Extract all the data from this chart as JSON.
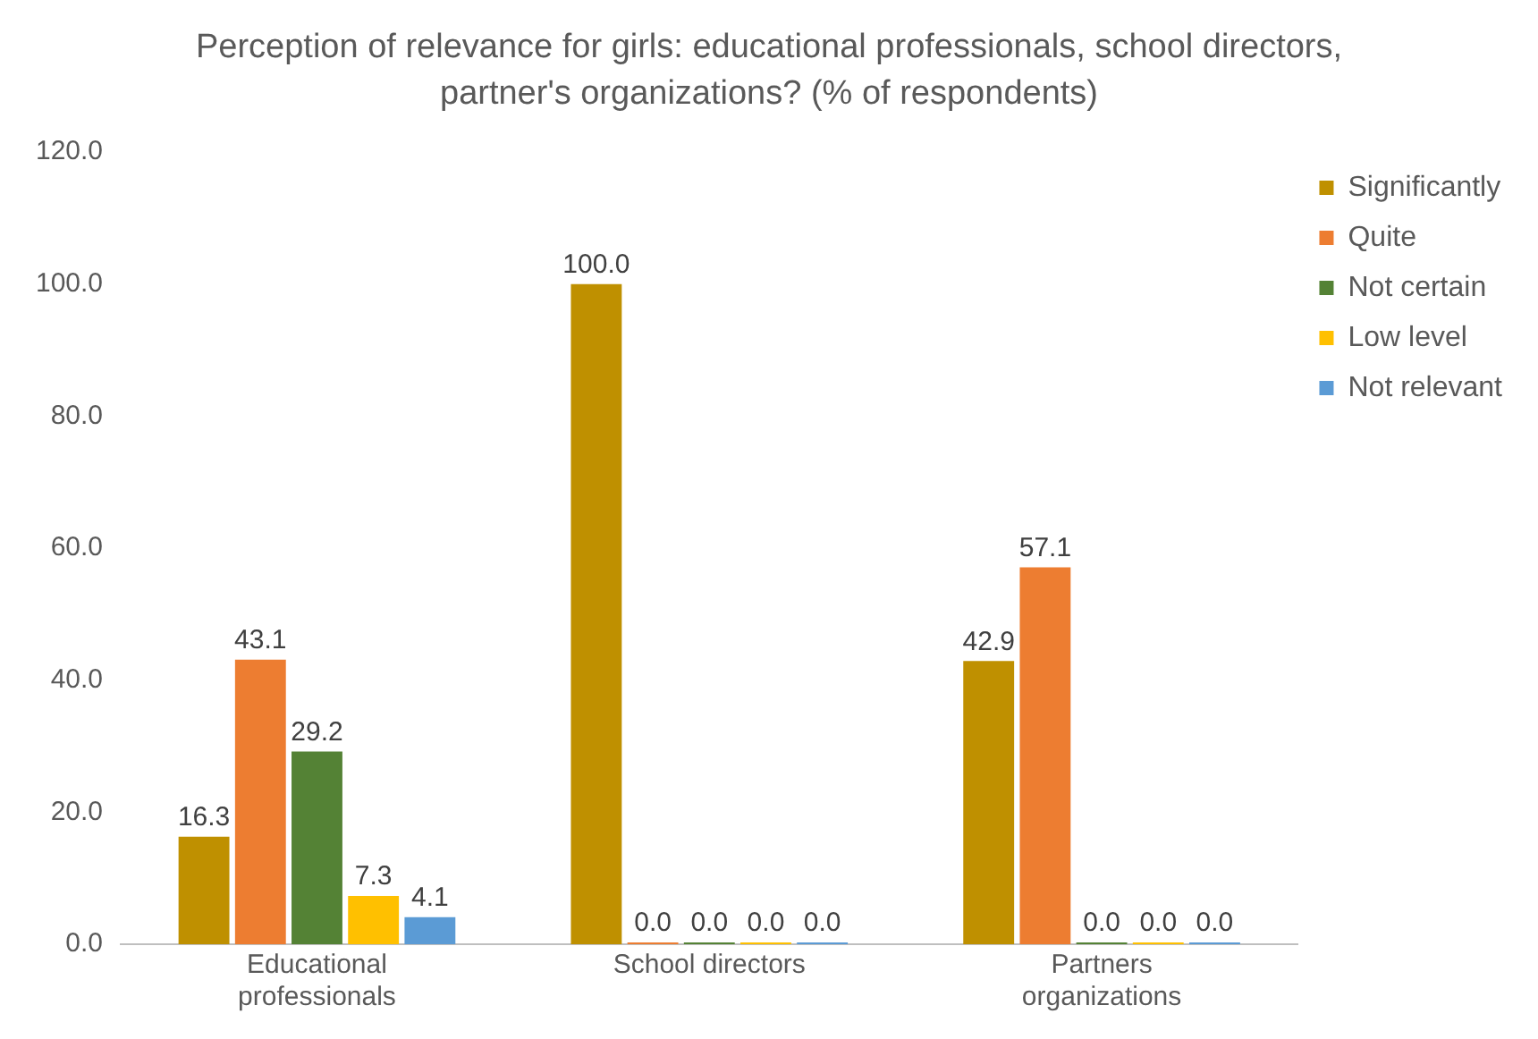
{
  "chart_data": {
    "type": "bar",
    "title": "Perception of relevance for girls: educational professionals, school directors, partner's organizations? (% of respondents)",
    "categories": [
      "Educational professionals",
      "School directors",
      "Partners organizations"
    ],
    "series": [
      {
        "name": "Significantly",
        "color": "#bf9000",
        "values": [
          16.3,
          100.0,
          42.9
        ],
        "value_labels": [
          "16.3",
          "100.0",
          "42.9"
        ]
      },
      {
        "name": "Quite",
        "color": "#ed7d31",
        "values": [
          43.1,
          0.0,
          57.1
        ],
        "value_labels": [
          "43.1",
          "0.0",
          "57.1"
        ]
      },
      {
        "name": "Not certain",
        "color": "#548235",
        "values": [
          29.2,
          0.0,
          0.0
        ],
        "value_labels": [
          "29.2",
          "0.0",
          "0.0"
        ]
      },
      {
        "name": "Low level",
        "color": "#ffc000",
        "values": [
          7.3,
          0.0,
          0.0
        ],
        "value_labels": [
          "7.3",
          "0.0",
          "0.0"
        ]
      },
      {
        "name": "Not relevant",
        "color": "#5b9bd5",
        "values": [
          4.1,
          0.0,
          0.0
        ],
        "value_labels": [
          "4.1",
          "0.0",
          "0.0"
        ]
      }
    ],
    "ylim": [
      0,
      120
    ],
    "yticks": [
      {
        "value": 0,
        "label": "0.0"
      },
      {
        "value": 20,
        "label": "20.0"
      },
      {
        "value": 40,
        "label": "40.0"
      },
      {
        "value": 60,
        "label": "60.0"
      },
      {
        "value": 80,
        "label": "80.0"
      },
      {
        "value": 100,
        "label": "100.0"
      },
      {
        "value": 120,
        "label": "120.0"
      }
    ],
    "grid": false,
    "legend": "right"
  }
}
